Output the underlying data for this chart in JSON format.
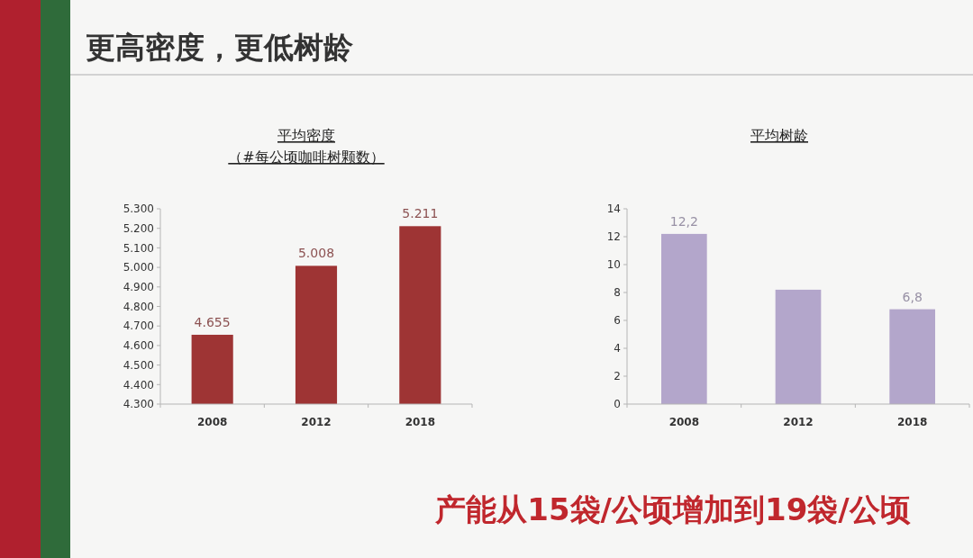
{
  "chart_data": [
    {
      "type": "other",
      "title": "更高密度，更低树龄",
      "annotations": [
        "产能从15袋/公顷增加到19袋/公顷"
      ]
    },
    {
      "type": "bar",
      "title": "平均密度",
      "subtitle": "（#每公顷咖啡树颗数）",
      "categories": [
        "2008",
        "2012",
        "2018"
      ],
      "values": [
        4655,
        5008,
        5211
      ],
      "value_labels": [
        "4.655",
        "5.008",
        "5.211"
      ],
      "color": "#9e3434",
      "ylim": [
        4300,
        5300
      ],
      "yticks": [
        {
          "value": 4300,
          "label": "4.300"
        },
        {
          "value": 4400,
          "label": "4.400"
        },
        {
          "value": 4500,
          "label": "4.500"
        },
        {
          "value": 4600,
          "label": "4.600"
        },
        {
          "value": 4700,
          "label": "4.700"
        },
        {
          "value": 4800,
          "label": "4.800"
        },
        {
          "value": 4900,
          "label": "4.900"
        },
        {
          "value": 5000,
          "label": "5.000"
        },
        {
          "value": 5100,
          "label": "5.100"
        },
        {
          "value": 5200,
          "label": "5.200"
        },
        {
          "value": 5300,
          "label": "5.300"
        }
      ]
    },
    {
      "type": "bar",
      "title": "平均树龄",
      "categories": [
        "2008",
        "2012",
        "2018"
      ],
      "values": [
        12.2,
        8.2,
        6.8
      ],
      "value_labels": [
        "12,2",
        null,
        "6,8"
      ],
      "color": "#b3a6cb",
      "ylim": [
        0,
        14
      ],
      "yticks": [
        0,
        2,
        4,
        6,
        8,
        10,
        12,
        14
      ]
    }
  ]
}
